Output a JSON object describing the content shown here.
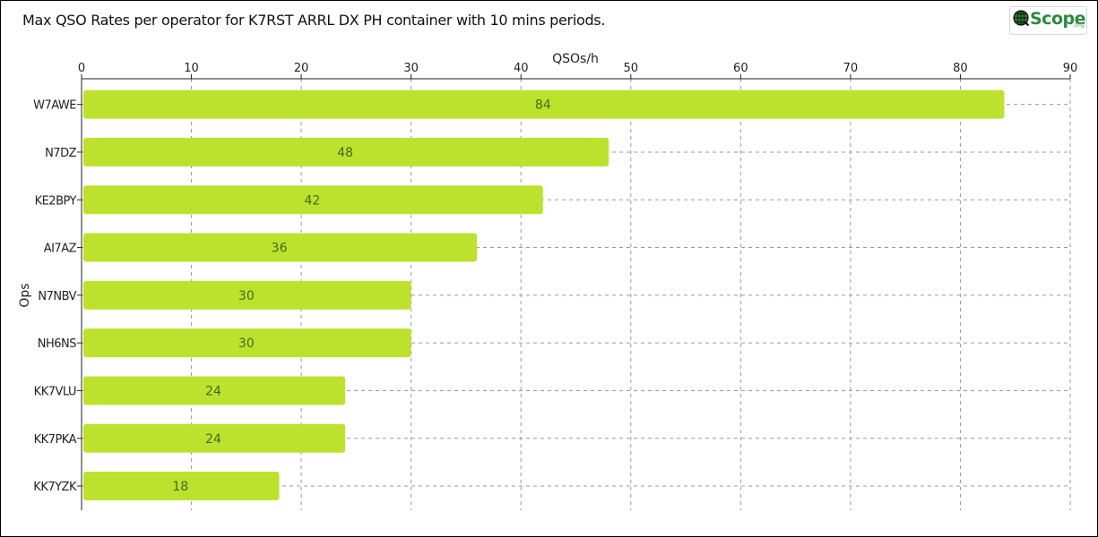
{
  "header": {
    "title": "Max QSO Rates per operator for K7RST ARRL DX PH  container with 10 mins periods.",
    "logo": {
      "text": "Scope",
      "suffix": ".org",
      "icon": "qscope-globe-icon",
      "color": "#2c8a3a"
    }
  },
  "chart_data": {
    "type": "bar",
    "orientation": "horizontal",
    "title": "Max QSO Rates per operator for K7RST ARRL DX PH  container with 10 mins periods.",
    "xlabel": "QSOs/h",
    "ylabel": "Ops",
    "categories": [
      "W7AWE",
      "N7DZ",
      "KE2BPY",
      "AI7AZ",
      "N7NBV",
      "NH6NS",
      "KK7VLU",
      "KK7PKA",
      "KK7YZK"
    ],
    "values": [
      84,
      48,
      42,
      36,
      30,
      30,
      24,
      24,
      18
    ],
    "xlim": [
      0,
      90
    ],
    "xticks": [
      0,
      10,
      20,
      30,
      40,
      50,
      60,
      70,
      80,
      90
    ],
    "x_axis_position": "top",
    "grid": true,
    "grid_style": "dashed",
    "data_labels": true,
    "bar_color": "#bde22e",
    "label_color": "#3f6b1f",
    "grid_color": "#9a9a9a"
  }
}
